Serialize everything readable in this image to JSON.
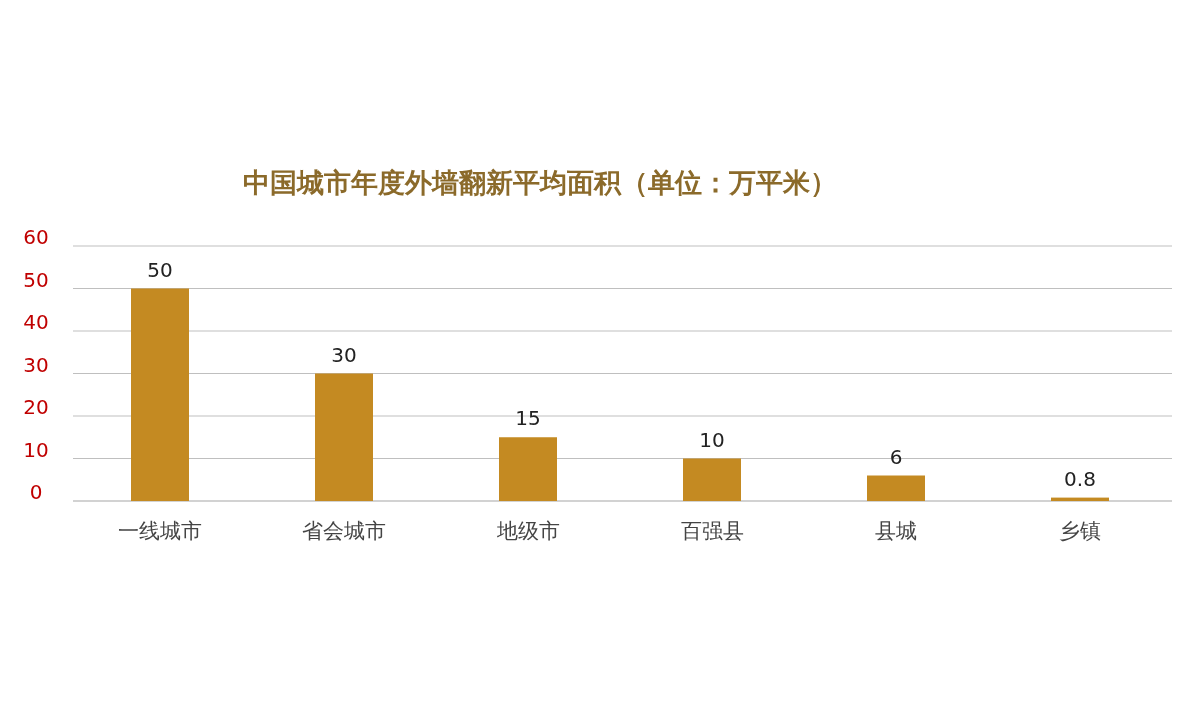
{
  "chart_data": {
    "type": "bar",
    "title": "中国城市年度外墙翻新平均面积（单位：万平米）",
    "categories": [
      "一线城市",
      "省会城市",
      "地级市",
      "百强县",
      "县城",
      "乡镇"
    ],
    "values": [
      50,
      30,
      15,
      10,
      6,
      0.8
    ],
    "color": "#c48a22",
    "ylim": [
      0,
      60
    ],
    "yticks": [
      0,
      10,
      20,
      30,
      40,
      50,
      60
    ],
    "grid": "y",
    "data_labels": true
  }
}
